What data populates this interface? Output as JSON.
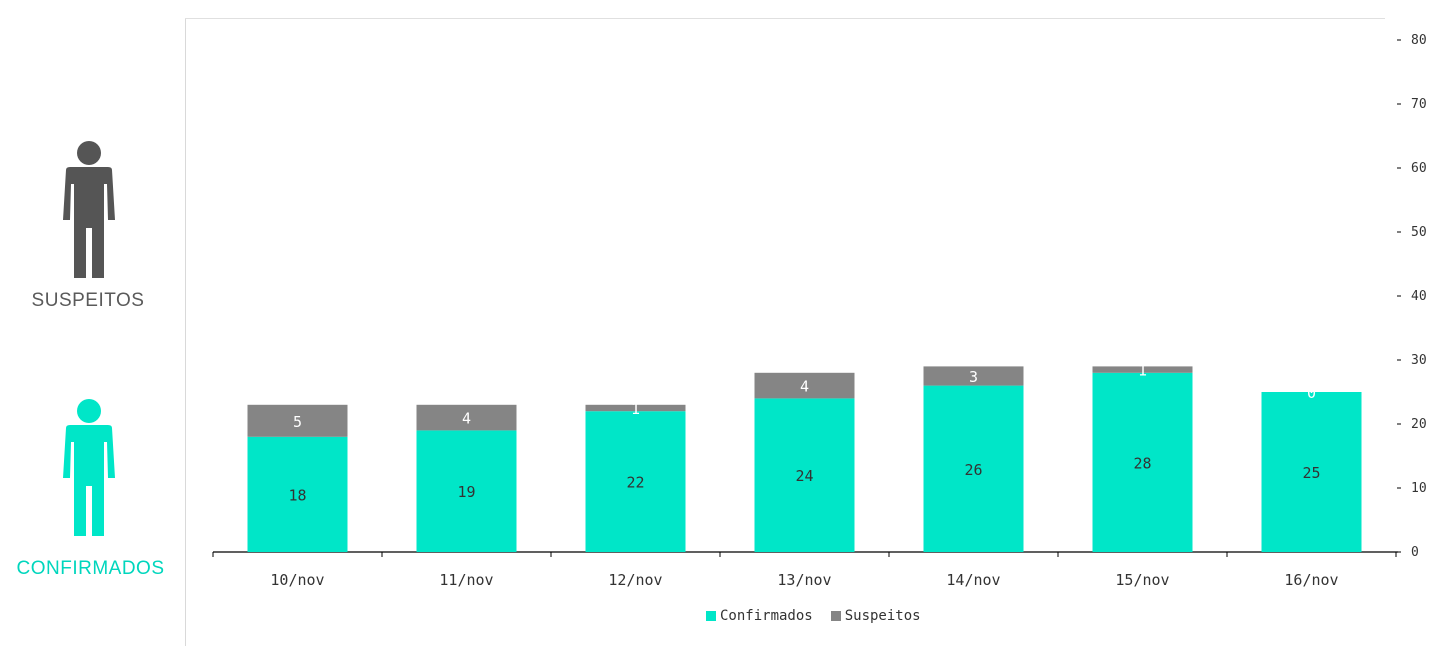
{
  "colors": {
    "confirmados": "#00E6C8",
    "suspeitos": "#858585",
    "confirmados_label": "#00D6BD",
    "suspeitos_label": "#5A5A5A",
    "title": "#1BA1D7"
  },
  "side": {
    "suspeitos_label": "SUSPEITOS",
    "confirmados_label": "CONFIRMADOS",
    "suspeitos_icon": "person-icon",
    "confirmados_icon": "person-icon"
  },
  "chart_data": {
    "type": "bar",
    "stacked": true,
    "categories": [
      "10/nov",
      "11/nov",
      "12/nov",
      "13/nov",
      "14/nov",
      "15/nov",
      "16/nov"
    ],
    "series": [
      {
        "name": "Confirmados",
        "values": [
          18,
          19,
          22,
          24,
          26,
          28,
          25
        ]
      },
      {
        "name": "Suspeitos",
        "values": [
          5,
          4,
          1,
          4,
          3,
          1,
          0
        ]
      }
    ],
    "ylim": [
      0,
      80
    ],
    "yticks": [
      0,
      10,
      20,
      30,
      40,
      50,
      60,
      70,
      80
    ],
    "yaxis_side": "right",
    "grid": false,
    "legend": "bottom-center"
  }
}
